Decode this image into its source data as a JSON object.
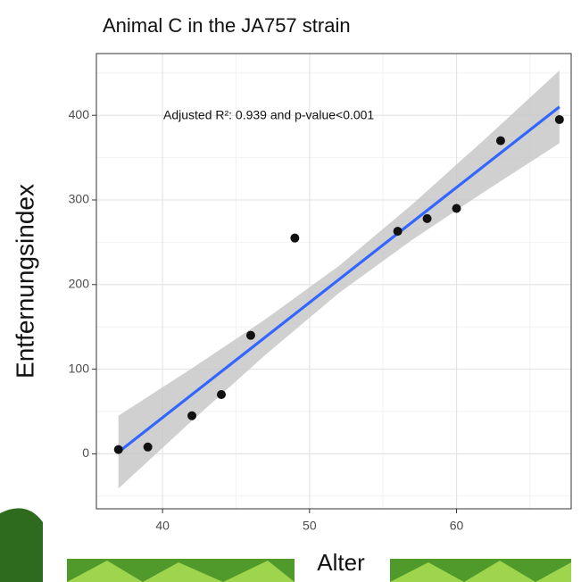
{
  "chart_data": {
    "type": "scatter",
    "title": "Animal C in the JA757 strain",
    "x_label": "Alter",
    "y_label": "Entfernungsindex",
    "annotation": "Adjusted R²:  0.939 and p-value<0.001",
    "series": [
      {
        "name": "observations",
        "color": "#111111",
        "x": [
          37,
          39,
          42,
          44,
          46,
          49,
          56,
          58,
          60,
          63,
          67
        ],
        "values": [
          5,
          8,
          45,
          70,
          140,
          255,
          263,
          278,
          290,
          370,
          395
        ]
      }
    ],
    "fit": {
      "color": "#3366ff",
      "x": [
        37,
        67
      ],
      "values": [
        2,
        410
      ]
    },
    "band": {
      "color": "#c4c4c4",
      "x": [
        37,
        42,
        47,
        52,
        57,
        62,
        67
      ],
      "lower": [
        -41,
        39,
        117,
        190,
        253,
        311,
        367
      ],
      "upper": [
        45,
        101,
        159,
        222,
        295,
        373,
        453
      ]
    },
    "xlim": [
      35.5,
      67.8
    ],
    "ylim": [
      -65,
      473
    ],
    "xticks": [
      40,
      50,
      60
    ],
    "yticks": [
      0,
      100,
      200,
      300,
      400
    ],
    "xminor": [
      35,
      45,
      55,
      65
    ],
    "yminor": [
      -50,
      50,
      150,
      250,
      350,
      450
    ],
    "grid": true
  }
}
